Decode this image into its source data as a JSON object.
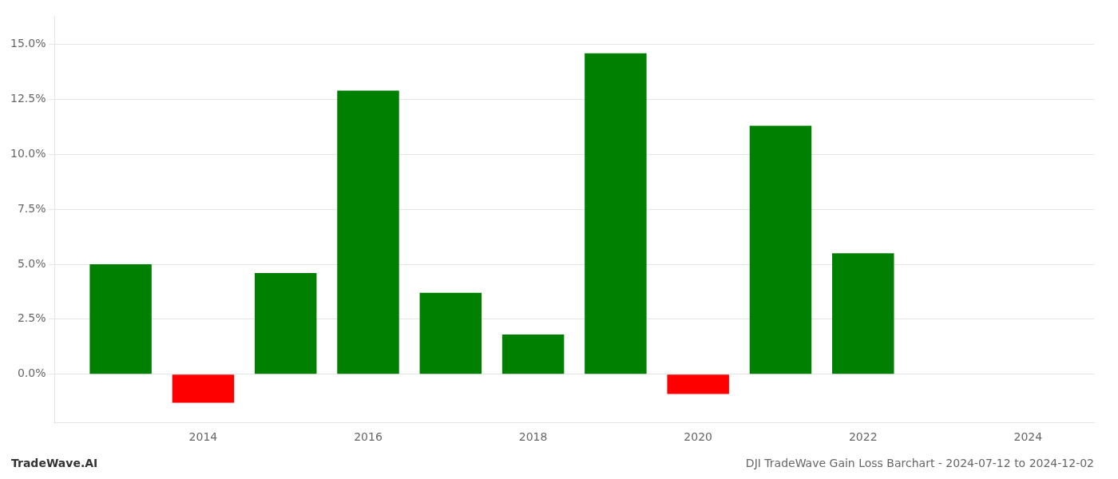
{
  "chart_data": {
    "type": "bar",
    "title": "DJI TradeWave Gain Loss Barchart - 2024-07-12 to 2024-12-02",
    "annotations": [
      "TradeWave.AI"
    ],
    "x": [
      2013,
      2014,
      2015,
      2016,
      2017,
      2018,
      2019,
      2020,
      2021,
      2022,
      2023
    ],
    "values": [
      0.05,
      -0.013,
      0.046,
      0.129,
      0.037,
      0.018,
      0.146,
      -0.009,
      0.113,
      0.055,
      0.0
    ],
    "colors": [
      "#008000",
      "#ff0000",
      "#008000",
      "#008000",
      "#008000",
      "#008000",
      "#008000",
      "#ff0000",
      "#008000",
      "#008000",
      "#008000"
    ],
    "xlim": [
      2012.2,
      2024.8
    ],
    "xticks": [
      2014,
      2016,
      2018,
      2020,
      2022,
      2024
    ],
    "ylim": [
      -0.022,
      0.163
    ],
    "yticks": [
      {
        "value": 0.0,
        "label": "0.0%"
      },
      {
        "value": 0.025,
        "label": "2.5%"
      },
      {
        "value": 0.05,
        "label": "5.0%"
      },
      {
        "value": 0.075,
        "label": "7.5%"
      },
      {
        "value": 0.1,
        "label": "10.0%"
      },
      {
        "value": 0.125,
        "label": "12.5%"
      },
      {
        "value": 0.15,
        "label": "15.0%"
      }
    ],
    "grid": true
  }
}
